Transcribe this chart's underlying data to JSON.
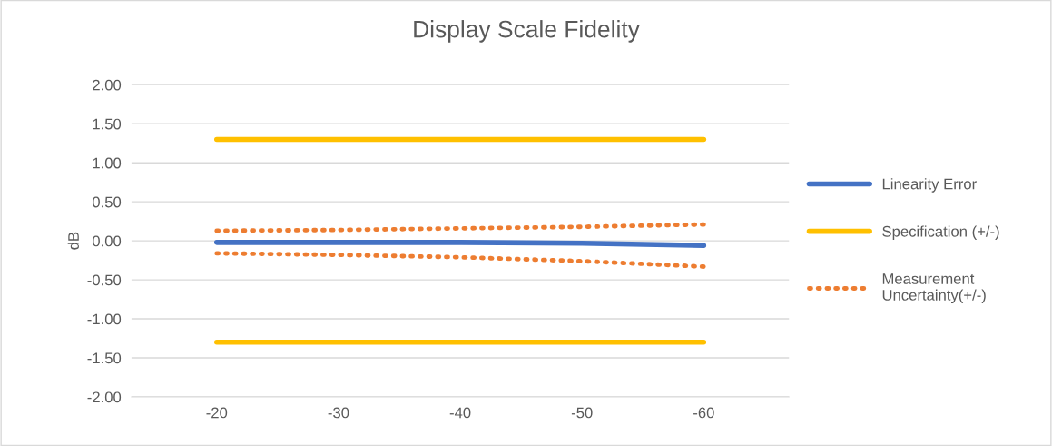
{
  "chart_data": {
    "type": "line",
    "title": "Display Scale Fidelity",
    "ylabel": "dB",
    "categories": [
      "-20",
      "-30",
      "-40",
      "-50",
      "-60"
    ],
    "series": [
      {
        "name": "Linearity Error",
        "color": "#4472c4",
        "values": [
          -0.02,
          -0.02,
          -0.02,
          -0.03,
          -0.06
        ],
        "line_style": "solid"
      },
      {
        "name": "Specification (+/-)",
        "color": "#ffc000",
        "values": [
          1.3,
          1.3,
          1.3,
          1.3,
          1.3
        ],
        "line_style": "solid"
      },
      {
        "color": "#ffc000",
        "values": [
          -1.3,
          -1.3,
          -1.3,
          -1.3,
          -1.3
        ],
        "line_style": "solid"
      },
      {
        "name": "Measurement Uncertainty(+/-)",
        "color": "#ed7d31",
        "values": [
          0.13,
          0.14,
          0.16,
          0.18,
          0.21
        ],
        "line_style": "dotted"
      },
      {
        "color": "#ed7d31",
        "values": [
          -0.16,
          -0.18,
          -0.21,
          -0.26,
          -0.33
        ],
        "line_style": "dotted"
      }
    ],
    "ylim": [
      -2.0,
      2.0
    ],
    "yticks": [
      {
        "value": -2.0,
        "label": "-2.00"
      },
      {
        "value": -1.5,
        "label": "-1.50"
      },
      {
        "value": -1.0,
        "label": "-1.00"
      },
      {
        "value": -0.5,
        "label": "-0.50"
      },
      {
        "value": 0.0,
        "label": "0.00"
      },
      {
        "value": 0.5,
        "label": "0.50"
      },
      {
        "value": 1.0,
        "label": "1.00"
      },
      {
        "value": 1.5,
        "label": "1.50"
      },
      {
        "value": 2.0,
        "label": "2.00"
      }
    ],
    "grid": "y",
    "legend": "right",
    "marker": "none"
  }
}
